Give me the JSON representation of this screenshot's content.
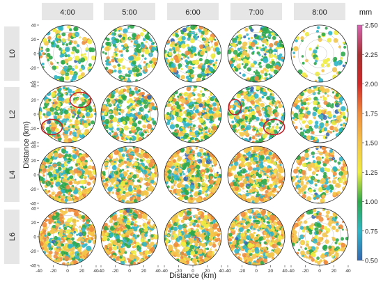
{
  "chart_data": {
    "type": "heatmap",
    "title": "",
    "columns": [
      "4:00",
      "5:00",
      "6:00",
      "7:00",
      "8:00"
    ],
    "rows": [
      "L0",
      "L2",
      "L4",
      "L6"
    ],
    "xlabel": "Distance (km)",
    "ylabel": "Distance (km)",
    "xlim": [
      -40,
      40
    ],
    "ylim": [
      -40,
      40
    ],
    "x_ticks": [
      -40,
      -20,
      0,
      20,
      40
    ],
    "y_ticks": [
      40,
      20,
      0,
      -20,
      -40
    ],
    "grid": "polar range rings",
    "colorbar": {
      "unit": "mm",
      "ticks": [
        "2.50",
        "2.25",
        "2.00",
        "1.75",
        "1.50",
        "1.25",
        "1.00",
        "0.75",
        "0.50"
      ],
      "values": [
        2.5,
        2.25,
        2.0,
        1.75,
        1.5,
        1.25,
        1.0,
        0.75,
        0.5
      ],
      "colors": [
        "#d765b4",
        "#a73030",
        "#d22828",
        "#f08c3c",
        "#f5c548",
        "#f0ec40",
        "#2ea84c",
        "#2fb6c8",
        "#3567b0"
      ]
    },
    "coverage": [
      [
        0.35,
        0.45,
        0.55,
        0.5,
        0.15
      ],
      [
        0.6,
        0.6,
        0.7,
        0.65,
        0.45
      ],
      [
        0.75,
        0.75,
        0.85,
        0.85,
        0.45
      ],
      [
        0.85,
        0.85,
        0.9,
        0.9,
        0.45
      ]
    ],
    "annotations": [
      {
        "column": "4:00",
        "row": "L2",
        "shape": "ellipse",
        "color": "#c0242a",
        "x": 18,
        "y": 20
      },
      {
        "column": "4:00",
        "row": "L2",
        "shape": "ellipse",
        "color": "#c0242a",
        "x": -22,
        "y": -18
      },
      {
        "column": "7:00",
        "row": "L2",
        "shape": "ellipse",
        "color": "#c0242a",
        "x": -30,
        "y": 10
      },
      {
        "column": "7:00",
        "row": "L2",
        "shape": "ellipse",
        "color": "#c0242a",
        "x": 25,
        "y": -18
      }
    ]
  }
}
